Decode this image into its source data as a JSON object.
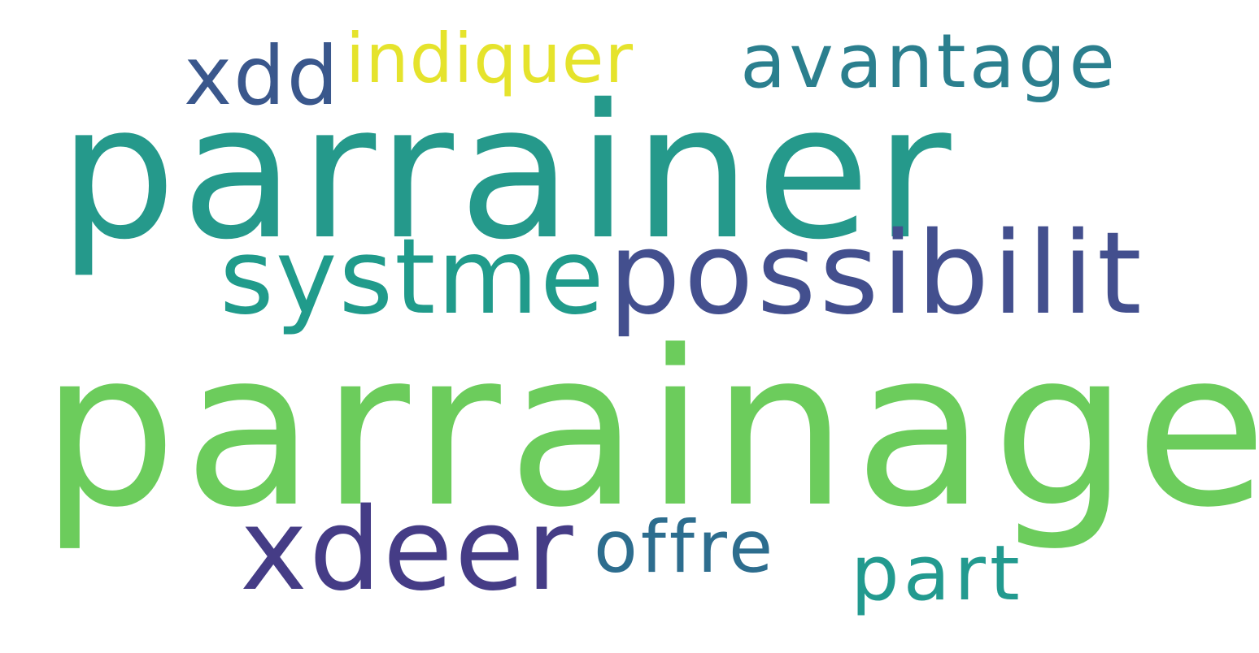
{
  "word_cloud": {
    "words": [
      {
        "key": "parrainage",
        "text": "parrainage",
        "color": "#6ccc5c"
      },
      {
        "key": "parrainer",
        "text": "parrainer",
        "color": "#25998b"
      },
      {
        "key": "possibilit",
        "text": "possibilit",
        "color": "#434f8e"
      },
      {
        "key": "systme",
        "text": "systme",
        "color": "#209b8b"
      },
      {
        "key": "xdeer",
        "text": "xdeer",
        "color": "#453c86"
      },
      {
        "key": "avantage",
        "text": "avantage",
        "color": "#2b7f8e"
      },
      {
        "key": "xdd",
        "text": "xdd",
        "color": "#3a578c"
      },
      {
        "key": "indiquer",
        "text": "indiquer",
        "color": "#e5e32c"
      },
      {
        "key": "offre",
        "text": "offre",
        "color": "#2d6d8e"
      },
      {
        "key": "part",
        "text": "part",
        "color": "#229a8f"
      }
    ]
  }
}
